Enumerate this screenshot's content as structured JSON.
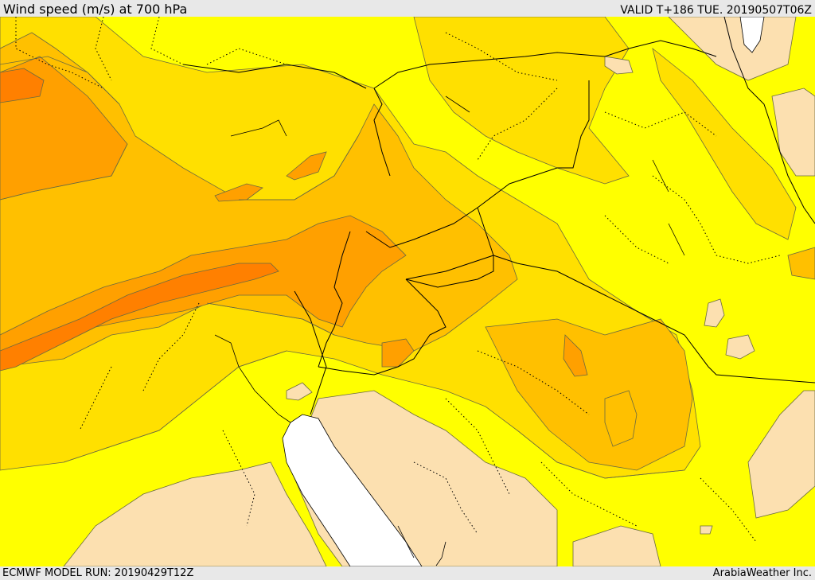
{
  "header": {
    "title": "Wind speed (m/s) at 700 hPa",
    "valid": "VALID T+186 TUE. 20190507T06Z"
  },
  "footer": {
    "model_run": "ECMWF MODEL RUN: 20190429T12Z",
    "provider": "ArabiaWeather Inc."
  },
  "map": {
    "fill_colors": {
      "lowest": "#fce0b0",
      "low": "#ffff00",
      "moderate": "#ffe000",
      "elevated": "#ffc000",
      "high": "#ffa000",
      "highest": "#ff8000",
      "sea_gap": "#ffffff"
    },
    "line_colors": {
      "contour": "#6a6a40",
      "borders": "#000000"
    }
  }
}
